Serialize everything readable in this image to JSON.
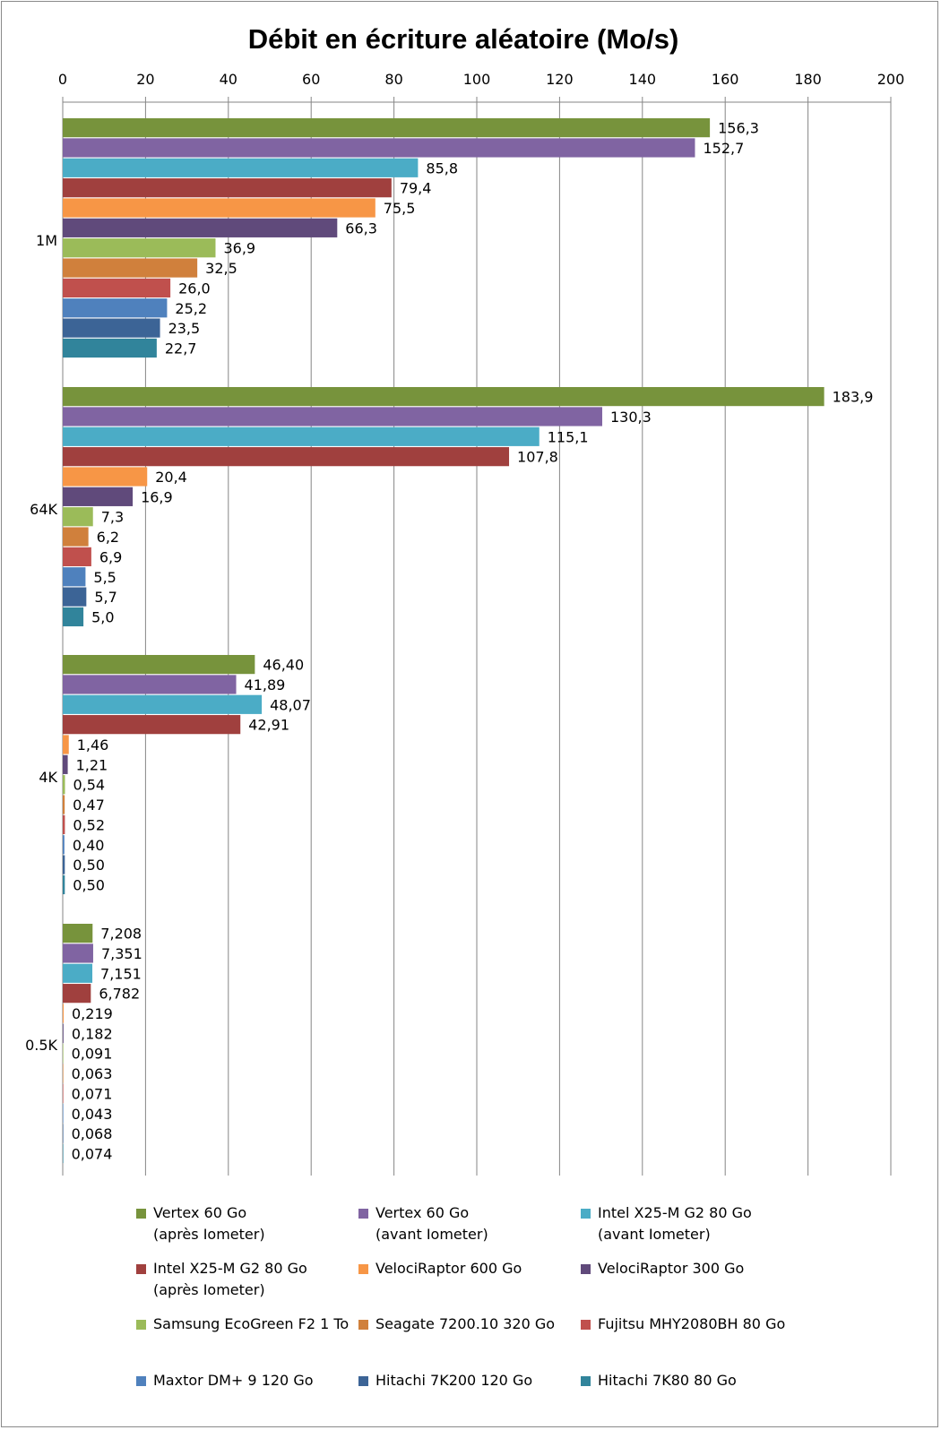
{
  "chart_data": {
    "type": "bar",
    "orientation": "horizontal",
    "title": "Débit en écriture aléatoire (Mo/s)",
    "xlabel": "",
    "ylabel": "",
    "xlim": [
      0,
      200
    ],
    "x_ticks": [
      "0",
      "20",
      "40",
      "60",
      "80",
      "100",
      "120",
      "140",
      "160",
      "180",
      "200"
    ],
    "x_axis_position": "top",
    "grid": true,
    "legend_position": "bottom",
    "categories": [
      "1M",
      "64K",
      "4K",
      "0.5K"
    ],
    "series": [
      {
        "name": "Vertex 60 Go\n(après Iometer)",
        "color": "#77933C",
        "values": [
          156.3,
          183.9,
          46.4,
          7.208
        ],
        "labels": [
          "156,3",
          "183,9",
          "46,40",
          "7,208"
        ]
      },
      {
        "name": "Vertex 60 Go\n(avant Iometer)",
        "color": "#8064A2",
        "values": [
          152.7,
          130.3,
          41.89,
          7.351
        ],
        "labels": [
          "152,7",
          "130,3",
          "41,89",
          "7,351"
        ]
      },
      {
        "name": "Intel X25-M G2 80 Go\n(avant Iometer)",
        "color": "#4BACC6",
        "values": [
          85.8,
          115.1,
          48.07,
          7.151
        ],
        "labels": [
          "85,8",
          "115,1",
          "48,07",
          "7,151"
        ]
      },
      {
        "name": "Intel X25-M G2 80 Go\n(après Iometer)",
        "color": "#A0403E",
        "values": [
          79.4,
          107.8,
          42.91,
          6.782
        ],
        "labels": [
          "79,4",
          "107,8",
          "42,91",
          "6,782"
        ]
      },
      {
        "name": "VelociRaptor 600 Go",
        "color": "#F79646",
        "values": [
          75.5,
          20.4,
          1.46,
          0.219
        ],
        "labels": [
          "75,5",
          "20,4",
          "1,46",
          "0,219"
        ]
      },
      {
        "name": "VelociRaptor 300 Go",
        "color": "#604A7B",
        "values": [
          66.3,
          16.9,
          1.21,
          0.182
        ],
        "labels": [
          "66,3",
          "16,9",
          "1,21",
          "0,182"
        ]
      },
      {
        "name": "Samsung EcoGreen F2 1 To",
        "color": "#9BBB59",
        "values": [
          36.9,
          7.3,
          0.54,
          0.091
        ],
        "labels": [
          "36,9",
          "7,3",
          "0,54",
          "0,091"
        ]
      },
      {
        "name": "Seagate 7200.10 320 Go",
        "color": "#D0803C",
        "values": [
          32.5,
          6.2,
          0.47,
          0.063
        ],
        "labels": [
          "32,5",
          "6,2",
          "0,47",
          "0,063"
        ]
      },
      {
        "name": "Fujitsu MHY2080BH 80 Go",
        "color": "#C0504D",
        "values": [
          26.0,
          6.9,
          0.52,
          0.071
        ],
        "labels": [
          "26,0",
          "6,9",
          "0,52",
          "0,071"
        ]
      },
      {
        "name": "Maxtor DM+ 9 120 Go",
        "color": "#4F81BD",
        "values": [
          25.2,
          5.5,
          0.4,
          0.043
        ],
        "labels": [
          "25,2",
          "5,5",
          "0,40",
          "0,043"
        ]
      },
      {
        "name": "Hitachi 7K200 120 Go",
        "color": "#3C6496",
        "values": [
          23.5,
          5.7,
          0.5,
          0.068
        ],
        "labels": [
          "23,5",
          "5,7",
          "0,50",
          "0,068"
        ]
      },
      {
        "name": "Hitachi 7K80 80 Go",
        "color": "#31849B",
        "values": [
          22.7,
          5.0,
          0.5,
          0.074
        ],
        "labels": [
          "22,7",
          "5,0",
          "0,50",
          "0,074"
        ]
      }
    ]
  }
}
